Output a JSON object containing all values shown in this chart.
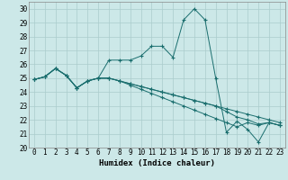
{
  "xlabel": "Humidex (Indice chaleur)",
  "background_color": "#cce8e8",
  "grid_color": "#aacccc",
  "line_color": "#1a6e6e",
  "xlim": [
    -0.5,
    23.5
  ],
  "ylim": [
    20,
    30.5
  ],
  "xticks": [
    0,
    1,
    2,
    3,
    4,
    5,
    6,
    7,
    8,
    9,
    10,
    11,
    12,
    13,
    14,
    15,
    16,
    17,
    18,
    19,
    20,
    21,
    22,
    23
  ],
  "yticks": [
    20,
    21,
    22,
    23,
    24,
    25,
    26,
    27,
    28,
    29,
    30
  ],
  "series": [
    [
      24.9,
      25.1,
      25.7,
      25.2,
      24.3,
      24.8,
      25.0,
      26.3,
      26.3,
      26.3,
      26.6,
      27.3,
      27.3,
      26.5,
      29.2,
      30.0,
      29.2,
      25.0,
      21.1,
      21.9,
      21.3,
      20.4,
      21.8,
      21.6
    ],
    [
      24.9,
      25.1,
      25.7,
      25.2,
      24.3,
      24.8,
      25.0,
      25.0,
      24.8,
      24.6,
      24.4,
      24.2,
      24.0,
      23.8,
      23.6,
      23.4,
      23.2,
      23.0,
      22.8,
      22.6,
      22.4,
      22.2,
      22.0,
      21.8
    ],
    [
      24.9,
      25.1,
      25.7,
      25.2,
      24.3,
      24.8,
      25.0,
      25.0,
      24.8,
      24.5,
      24.2,
      23.9,
      23.6,
      23.3,
      23.0,
      22.7,
      22.4,
      22.1,
      21.8,
      21.5,
      21.8,
      21.6,
      21.8,
      21.6
    ],
    [
      24.9,
      25.1,
      25.7,
      25.2,
      24.3,
      24.8,
      25.0,
      25.0,
      24.8,
      24.6,
      24.4,
      24.2,
      24.0,
      23.8,
      23.6,
      23.4,
      23.2,
      23.0,
      22.6,
      22.2,
      22.0,
      21.7,
      21.8,
      21.6
    ]
  ]
}
